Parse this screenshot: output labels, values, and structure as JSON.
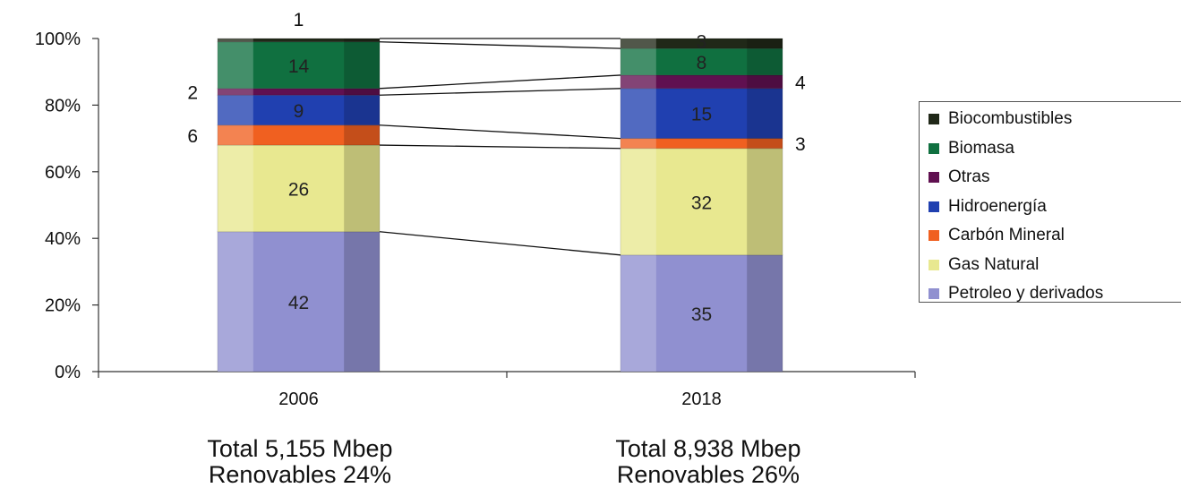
{
  "chart_data": {
    "type": "bar",
    "stacked": true,
    "percent": true,
    "categories": [
      "2006",
      "2018"
    ],
    "y_ticks": [
      "0%",
      "20%",
      "40%",
      "60%",
      "80%",
      "100%"
    ],
    "ylim": [
      0,
      100
    ],
    "series": [
      {
        "name": "Petroleo y derivados",
        "color": "#9090d0",
        "values": [
          42,
          35
        ],
        "labels": [
          "42",
          "35"
        ]
      },
      {
        "name": "Gas Natural",
        "color": "#e8e890",
        "values": [
          26,
          32
        ],
        "labels": [
          "26",
          "32"
        ]
      },
      {
        "name": "Carbón Mineral",
        "color": "#f06020",
        "values": [
          6,
          3
        ],
        "labels": [
          "6",
          "3"
        ]
      },
      {
        "name": "Hidroenergía",
        "color": "#2040b0",
        "values": [
          9,
          15
        ],
        "labels": [
          "9",
          "15"
        ]
      },
      {
        "name": "Otras",
        "color": "#601050",
        "values": [
          2,
          4
        ],
        "labels": [
          "2",
          "4"
        ]
      },
      {
        "name": "Biomasa",
        "color": "#107040",
        "values": [
          14,
          8
        ],
        "labels": [
          "14",
          "8"
        ]
      },
      {
        "name": "Biocombustibles",
        "color": "#202818",
        "values": [
          1,
          3
        ],
        "labels": [
          "1",
          "3"
        ]
      }
    ],
    "legend_position": "right",
    "legend_order": [
      6,
      5,
      4,
      3,
      2,
      1,
      0
    ]
  },
  "footers": [
    {
      "total": "Total 5,155 Mbep",
      "renewables": "Renovables 24%"
    },
    {
      "total": "Total 8,938 Mbep",
      "renewables": "Renovables 26%"
    }
  ]
}
